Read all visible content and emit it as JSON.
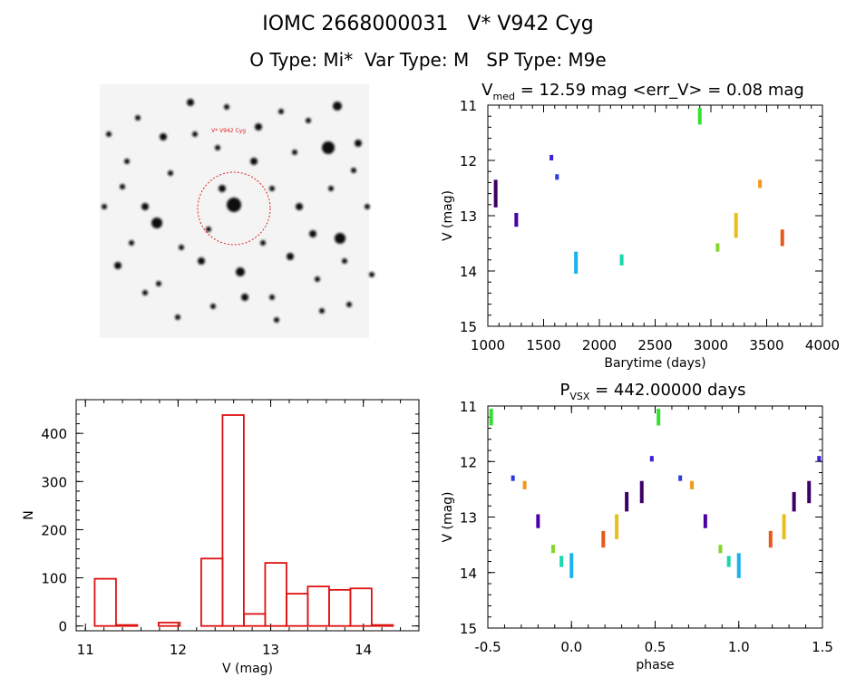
{
  "header": {
    "title": "IOMC 2668000031   V* V942 Cyg",
    "subtitle": "O Type: Mi*  Var Type: M   SP Type: M9e"
  },
  "finder": {
    "label": "V* V942 Cyg"
  },
  "chart_data": [
    {
      "type": "scatter",
      "title_main": "V",
      "title_sub": "med",
      "title_rest": " = 12.59 mag <err_V> = 0.08 mag",
      "xlabel": "Barytime (days)",
      "ylabel": "V (mag)",
      "xlim": [
        1000,
        4000
      ],
      "ylim": [
        15,
        11
      ],
      "xticks": [
        "1000",
        "1500",
        "2000",
        "2500",
        "3000",
        "3500",
        "4000"
      ],
      "yticks": [
        "11",
        "12",
        "13",
        "14",
        "15"
      ],
      "groups": [
        {
          "x": 1070,
          "ymin": 12.35,
          "ymax": 12.85,
          "color": "#3d0066"
        },
        {
          "x": 1255,
          "ymin": 12.95,
          "ymax": 13.2,
          "color": "#4b00a6"
        },
        {
          "x": 1570,
          "ymin": 11.9,
          "ymax": 12.0,
          "color": "#3c1fd6"
        },
        {
          "x": 1620,
          "ymin": 12.25,
          "ymax": 12.35,
          "color": "#2a3ae0"
        },
        {
          "x": 1790,
          "ymin": 13.65,
          "ymax": 14.05,
          "color": "#18b2ee"
        },
        {
          "x": 2200,
          "ymin": 13.7,
          "ymax": 13.9,
          "color": "#19d7b0"
        },
        {
          "x": 2900,
          "ymin": 11.05,
          "ymax": 11.35,
          "color": "#35e030"
        },
        {
          "x": 3060,
          "ymin": 13.5,
          "ymax": 13.65,
          "color": "#84d62a"
        },
        {
          "x": 3225,
          "ymin": 12.95,
          "ymax": 13.4,
          "color": "#e8c01a"
        },
        {
          "x": 3440,
          "ymin": 12.35,
          "ymax": 12.5,
          "color": "#f29a1c"
        },
        {
          "x": 3640,
          "ymin": 13.25,
          "ymax": 13.55,
          "color": "#e55a1c"
        }
      ]
    },
    {
      "type": "bar",
      "xlabel": "V (mag)",
      "ylabel": "N",
      "xlim": [
        10.9,
        14.6
      ],
      "ylim": [
        -10,
        470
      ],
      "xticks": [
        "11",
        "12",
        "13",
        "14"
      ],
      "yticks": [
        "0",
        "100",
        "200",
        "300",
        "400"
      ],
      "color": "#dd1111",
      "bins": [
        {
          "x0": 11.1,
          "x1": 11.33,
          "count": 98
        },
        {
          "x0": 11.33,
          "x1": 11.56,
          "count": 2
        },
        {
          "x0": 11.56,
          "x1": 11.79,
          "count": 0
        },
        {
          "x0": 11.79,
          "x1": 12.02,
          "count": 7
        },
        {
          "x0": 12.02,
          "x1": 12.25,
          "count": 0
        },
        {
          "x0": 12.25,
          "x1": 12.48,
          "count": 140
        },
        {
          "x0": 12.48,
          "x1": 12.71,
          "count": 438
        },
        {
          "x0": 12.71,
          "x1": 12.94,
          "count": 25
        },
        {
          "x0": 12.94,
          "x1": 13.17,
          "count": 131
        },
        {
          "x0": 13.17,
          "x1": 13.4,
          "count": 67
        },
        {
          "x0": 13.4,
          "x1": 13.63,
          "count": 82
        },
        {
          "x0": 13.63,
          "x1": 13.86,
          "count": 75
        },
        {
          "x0": 13.86,
          "x1": 14.09,
          "count": 78
        },
        {
          "x0": 14.09,
          "x1": 14.32,
          "count": 2
        }
      ]
    },
    {
      "type": "scatter",
      "title_main": "P",
      "title_sub": "VSX",
      "title_rest": " = 442.00000 days",
      "xlabel": "phase",
      "ylabel": "V (mag)",
      "xlim": [
        -0.5,
        1.5
      ],
      "ylim": [
        15,
        11
      ],
      "xticks": [
        "-0.5",
        "0.0",
        "0.5",
        "1.0",
        "1.5"
      ],
      "yticks": [
        "11",
        "12",
        "13",
        "14",
        "15"
      ],
      "groups": [
        {
          "x": -0.48,
          "ymin": 11.05,
          "ymax": 11.35,
          "color": "#35e030"
        },
        {
          "x": -0.35,
          "ymin": 12.25,
          "ymax": 12.35,
          "color": "#2a3ae0"
        },
        {
          "x": -0.28,
          "ymin": 12.35,
          "ymax": 12.5,
          "color": "#f29a1c"
        },
        {
          "x": -0.2,
          "ymin": 12.95,
          "ymax": 13.2,
          "color": "#4b00a6"
        },
        {
          "x": -0.11,
          "ymin": 13.5,
          "ymax": 13.65,
          "color": "#84d62a"
        },
        {
          "x": -0.06,
          "ymin": 13.7,
          "ymax": 13.9,
          "color": "#19d7b0"
        },
        {
          "x": 0.0,
          "ymin": 13.65,
          "ymax": 14.1,
          "color": "#18b2ee"
        },
        {
          "x": 0.19,
          "ymin": 13.25,
          "ymax": 13.55,
          "color": "#e55a1c"
        },
        {
          "x": 0.27,
          "ymin": 12.95,
          "ymax": 13.4,
          "color": "#e8c01a"
        },
        {
          "x": 0.33,
          "ymin": 12.55,
          "ymax": 12.9,
          "color": "#3d0066"
        },
        {
          "x": 0.42,
          "ymin": 12.35,
          "ymax": 12.75,
          "color": "#3d0066"
        },
        {
          "x": 0.48,
          "ymin": 11.9,
          "ymax": 12.0,
          "color": "#3c1fd6"
        },
        {
          "x": 0.52,
          "ymin": 11.05,
          "ymax": 11.35,
          "color": "#35e030"
        },
        {
          "x": 0.65,
          "ymin": 12.25,
          "ymax": 12.35,
          "color": "#2a3ae0"
        },
        {
          "x": 0.72,
          "ymin": 12.35,
          "ymax": 12.5,
          "color": "#f29a1c"
        },
        {
          "x": 0.8,
          "ymin": 12.95,
          "ymax": 13.2,
          "color": "#4b00a6"
        },
        {
          "x": 0.89,
          "ymin": 13.5,
          "ymax": 13.65,
          "color": "#84d62a"
        },
        {
          "x": 0.94,
          "ymin": 13.7,
          "ymax": 13.9,
          "color": "#19d7b0"
        },
        {
          "x": 1.0,
          "ymin": 13.65,
          "ymax": 14.1,
          "color": "#18b2ee"
        },
        {
          "x": 1.19,
          "ymin": 13.25,
          "ymax": 13.55,
          "color": "#e55a1c"
        },
        {
          "x": 1.27,
          "ymin": 12.95,
          "ymax": 13.4,
          "color": "#e8c01a"
        },
        {
          "x": 1.33,
          "ymin": 12.55,
          "ymax": 12.9,
          "color": "#3d0066"
        },
        {
          "x": 1.42,
          "ymin": 12.35,
          "ymax": 12.75,
          "color": "#3d0066"
        },
        {
          "x": 1.48,
          "ymin": 11.9,
          "ymax": 12.0,
          "color": "#3c1fd6"
        }
      ]
    }
  ]
}
